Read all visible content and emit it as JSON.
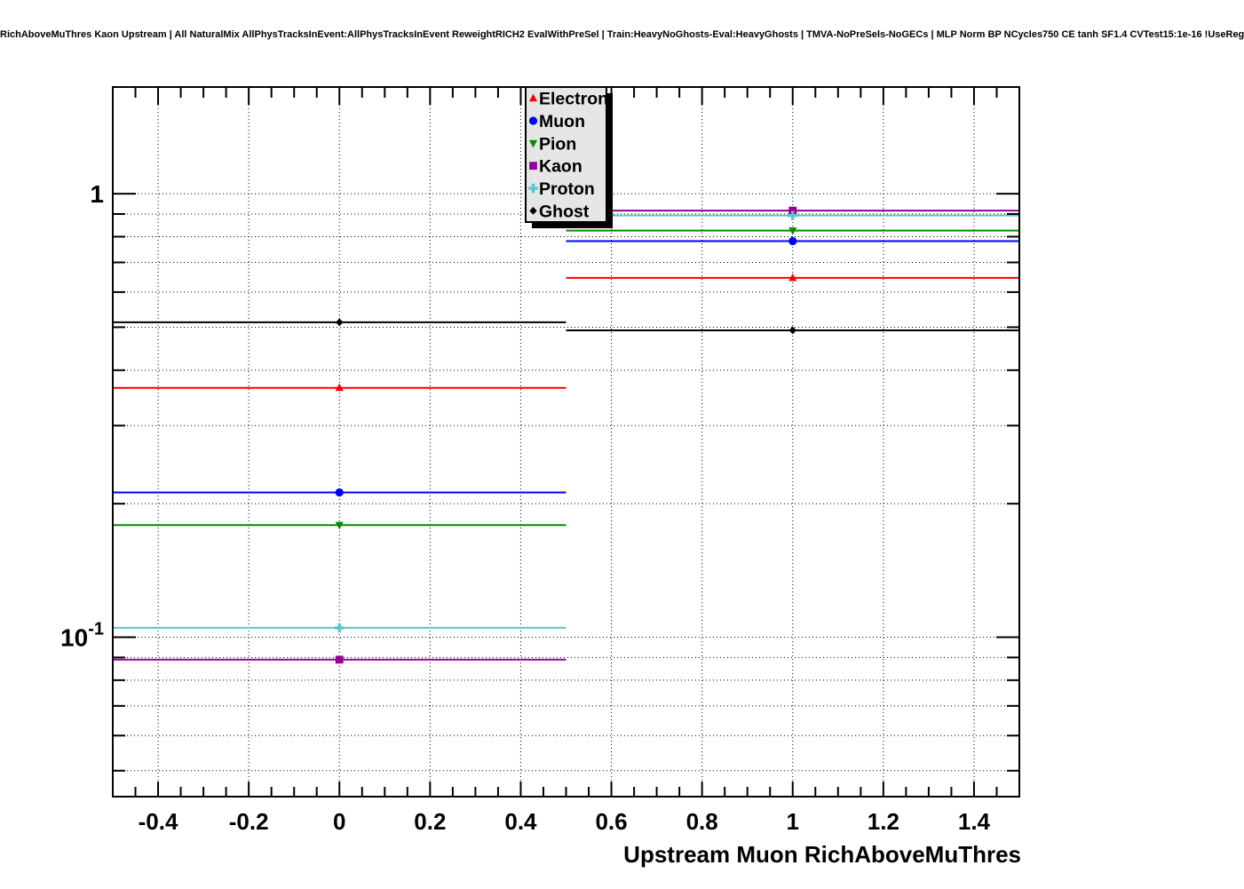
{
  "chart_data": {
    "type": "line",
    "title": "RichAboveMuThres Kaon Upstream | All NaturalMix AllPhysTracksInEvent:AllPhysTracksInEvent ReweightRICH2 EvalWithPreSel | Train:HeavyNoGhosts-Eval:HeavyGhosts | TMVA-NoPreSels-NoGECs | MLP Norm BP NCycles750 CE tanh SF1.4 CVTest15:1e-16 !UseReg",
    "xlabel": "Upstream Muon RichAboveMuThres",
    "ylabel": "",
    "x_scale": "linear",
    "y_scale": "log",
    "xlim": [
      -0.5,
      1.5
    ],
    "ylim": [
      0.0437,
      1.74
    ],
    "grid": true,
    "legend_position": "top-center",
    "x": [
      0,
      1
    ],
    "bin_half_width": 0.5,
    "x_minor_step": 0.05,
    "x_ticks": [
      {
        "v": -0.4,
        "label": "-0.4"
      },
      {
        "v": -0.2,
        "label": "-0.2"
      },
      {
        "v": 0,
        "label": "0"
      },
      {
        "v": 0.2,
        "label": "0.2"
      },
      {
        "v": 0.4,
        "label": "0.4"
      },
      {
        "v": 0.6,
        "label": "0.6"
      },
      {
        "v": 0.8,
        "label": "0.8"
      },
      {
        "v": 1,
        "label": "1"
      },
      {
        "v": 1.2,
        "label": "1.2"
      },
      {
        "v": 1.4,
        "label": "1.4"
      }
    ],
    "y_ticks": [
      {
        "v": 1,
        "label": "1",
        "exp": null
      },
      {
        "v": 0.1,
        "label": "10",
        "exp": "-1"
      }
    ],
    "y_minor_ticks": [
      0.9,
      0.8,
      0.7,
      0.6,
      0.5,
      0.4,
      0.3,
      0.2,
      0.09,
      0.08,
      0.07,
      0.06,
      0.05
    ],
    "series": [
      {
        "name": "Electron",
        "color": "#ff0000",
        "marker": "triangle-up",
        "values": [
          0.365,
          0.646
        ]
      },
      {
        "name": "Muon",
        "color": "#0000ff",
        "marker": "circle",
        "values": [
          0.212,
          0.782
        ]
      },
      {
        "name": "Pion",
        "color": "#008c00",
        "marker": "triangle-down",
        "values": [
          0.179,
          0.826
        ]
      },
      {
        "name": "Kaon",
        "color": "#960096",
        "marker": "square",
        "values": [
          0.089,
          0.916
        ]
      },
      {
        "name": "Proton",
        "color": "#5ac8c8",
        "marker": "cross",
        "values": [
          0.105,
          0.893
        ]
      },
      {
        "name": "Ghost",
        "color": "#000000",
        "marker": "diamond",
        "values": [
          0.513,
          0.492
        ]
      }
    ]
  }
}
